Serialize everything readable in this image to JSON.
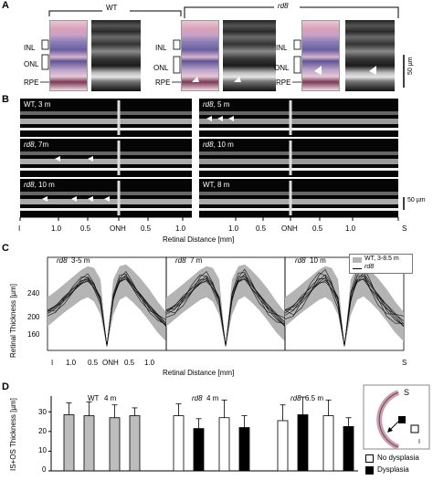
{
  "panelA": {
    "letter": "A",
    "wt": "WT",
    "rd8": "rd8",
    "layers": [
      "INL",
      "ONL",
      "RPE"
    ],
    "scale": "50 µm"
  },
  "panelB": {
    "letter": "B",
    "scans": [
      {
        "strain": "WT",
        "age": "3 m"
      },
      {
        "strain": "rd8",
        "age": "5 m"
      },
      {
        "strain": "rd8",
        "age": "7m"
      },
      {
        "strain": "rd8",
        "age": "10 m"
      },
      {
        "strain": "rd8",
        "age": "10 m"
      },
      {
        "strain": "WT",
        "age": "8 m"
      }
    ],
    "ticks_left": [
      "I",
      "1.0",
      "0.5",
      "ONH",
      "0.5",
      "1.0"
    ],
    "ticks_right": [
      "1.0",
      "0.5",
      "ONH",
      "0.5",
      "1.0",
      "S"
    ],
    "xlabel": "Retinal Distance [mm]",
    "scale": "50 µm"
  },
  "panelC": {
    "letter": "C",
    "ylabel": "Retinal Thickness [µm]",
    "xlabel": "Retinal Distance [mm]",
    "yticks": [
      "240",
      "200",
      "160"
    ],
    "xticks": [
      "I",
      "1.0",
      "0.5",
      "ONH",
      "0.5",
      "1.0"
    ],
    "end_label": "S",
    "subplots": [
      {
        "title_strain": "rd8",
        "title_age": "3-5 m"
      },
      {
        "title_strain": "rd8",
        "title_age": "7 m"
      },
      {
        "title_strain": "rd8",
        "title_age": "10 m"
      }
    ],
    "legend": {
      "wt": "WT, 3-8.5 m",
      "rd8": "rd8"
    }
  },
  "panelD": {
    "letter": "D",
    "ylabel": "IS+OS Thickness [µm]",
    "yticks": [
      "0",
      "10",
      "20",
      "30"
    ],
    "groups": [
      {
        "strain": "WT",
        "age": "4 m"
      },
      {
        "strain": "rd8",
        "age": "4 m"
      },
      {
        "strain": "rd8",
        "age": "6.5 m"
      }
    ],
    "legend": {
      "no_dysplasia": "No dysplasia",
      "dysplasia": "Dysplasia"
    },
    "inset_labels": {
      "s": "S",
      "i": "I"
    }
  },
  "chart_data": [
    {
      "type": "line",
      "panel": "C",
      "ylabel": "Retinal Thickness [µm]",
      "xlabel": "Retinal Distance [mm]",
      "ylim": [
        145,
        250
      ],
      "x": [
        -1.4,
        -1.2,
        -1.0,
        -0.8,
        -0.6,
        -0.45,
        -0.3,
        -0.15,
        0,
        0.15,
        0.3,
        0.45,
        0.6,
        0.8,
        1.0,
        1.2,
        1.4
      ],
      "series": [
        {
          "name": "WT, 3-8.5 m upper",
          "values": [
            205,
            212,
            220,
            228,
            236,
            240,
            238,
            225,
            150,
            225,
            240,
            242,
            236,
            226,
            214,
            200,
            188
          ]
        },
        {
          "name": "WT, 3-8.5 m lower",
          "values": [
            172,
            180,
            188,
            195,
            202,
            205,
            200,
            185,
            148,
            185,
            202,
            206,
            200,
            190,
            178,
            165,
            155
          ]
        },
        {
          "name": "rd8",
          "values": [
            190,
            196,
            205,
            212,
            220,
            224,
            218,
            205,
            150,
            205,
            222,
            226,
            218,
            208,
            196,
            184,
            172
          ]
        }
      ]
    },
    {
      "type": "bar",
      "panel": "D",
      "ylabel": "IS+OS Thickness [µm]",
      "ylim": [
        0,
        38
      ],
      "categories": [
        "WT 4 m #1",
        "WT 4 m #2",
        "WT 4 m #3",
        "WT 4 m #4",
        "rd8 4 m #1",
        "rd8 4 m #2",
        "rd8 4 m #3",
        "rd8 4 m #4",
        "rd8 6.5 m #1",
        "rd8 6.5 m #2",
        "rd8 6.5 m #3",
        "rd8 6.5 m #4"
      ],
      "values": [
        28.5,
        28,
        27,
        28,
        28,
        21.5,
        27,
        22,
        25.5,
        28.5,
        28,
        22.5
      ],
      "errors": [
        6,
        7,
        6.5,
        4,
        6,
        5,
        9,
        6,
        8,
        9,
        8,
        4.5
      ],
      "fill": [
        "gray",
        "gray",
        "gray",
        "gray",
        "white",
        "black",
        "white",
        "black",
        "white",
        "black",
        "white",
        "black"
      ],
      "colors": {
        "gray": "#bdbdbd",
        "white": "#ffffff",
        "black": "#000000"
      }
    }
  ]
}
